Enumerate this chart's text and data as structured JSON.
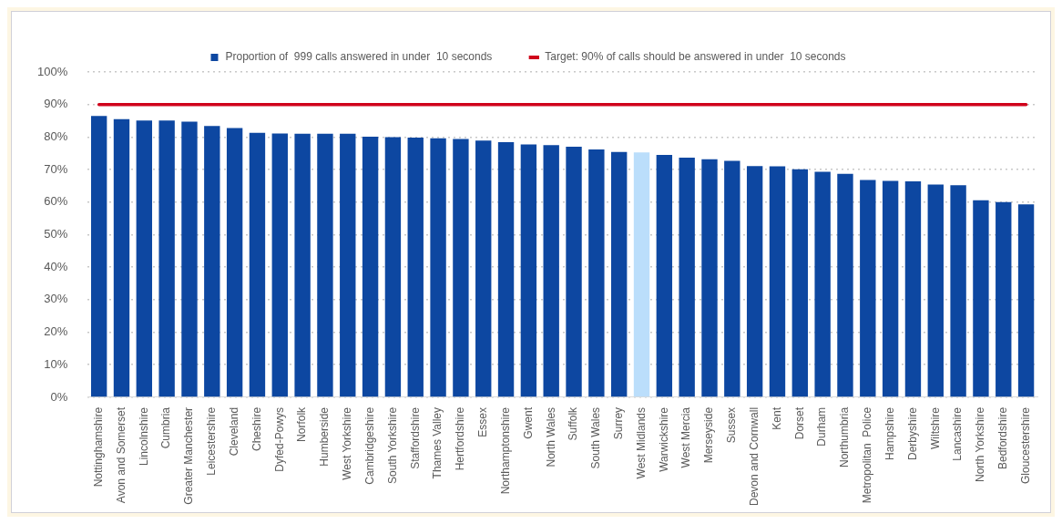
{
  "chart_data": {
    "type": "bar",
    "categories": [
      "Nottinghamshire",
      "Avon and Somerset",
      "Lincolnshire",
      "Cumbria",
      "Greater Manchester",
      "Leicestershire",
      "Cleveland",
      "Cheshire",
      "Dyfed-Powys",
      "Norfolk",
      "Humberside",
      "West Yorkshire",
      "Cambridgeshire",
      "South Yorkshire",
      "Staffordshire",
      "Thames Valley",
      "Hertfordshire",
      "Essex",
      "Northamptonshire",
      "Gwent",
      "North Wales",
      "Suffolk",
      "South Wales",
      "Surrey",
      "West Midlands",
      "Warwickshire",
      "West Mercia",
      "Merseyside",
      "Sussex",
      "Devon and Cornwall",
      "Kent",
      "Dorset",
      "Durham",
      "Northumbria",
      "Metropolitan  Police",
      "Hampshire",
      "Derbyshire",
      "Wiltshire",
      "Lancashire",
      "North Yorkshire",
      "Bedfordshire",
      "Gloucestershire"
    ],
    "series": [
      {
        "name": "Proportion of  999 calls answered in under  10 seconds",
        "color": "#0d47a1",
        "colors": [
          "#0d47a1",
          "#0d47a1",
          "#0d47a1",
          "#0d47a1",
          "#0d47a1",
          "#0d47a1",
          "#0d47a1",
          "#0d47a1",
          "#0d47a1",
          "#0d47a1",
          "#0d47a1",
          "#0d47a1",
          "#0d47a1",
          "#0d47a1",
          "#0d47a1",
          "#0d47a1",
          "#0d47a1",
          "#0d47a1",
          "#0d47a1",
          "#0d47a1",
          "#0d47a1",
          "#0d47a1",
          "#0d47a1",
          "#0d47a1",
          "#bbdefb",
          "#0d47a1",
          "#0d47a1",
          "#0d47a1",
          "#0d47a1",
          "#0d47a1",
          "#0d47a1",
          "#0d47a1",
          "#0d47a1",
          "#0d47a1",
          "#0d47a1",
          "#0d47a1",
          "#0d47a1",
          "#0d47a1",
          "#0d47a1",
          "#0d47a1",
          "#0d47a1",
          "#0d47a1"
        ],
        "values": [
          86.5,
          85.5,
          85.1,
          85.1,
          84.7,
          83.4,
          82.8,
          81.3,
          81.1,
          81,
          81,
          81,
          80.1,
          80,
          79.8,
          79.6,
          79.4,
          78.9,
          78.4,
          77.7,
          77.5,
          77,
          76.2,
          75.4,
          75.3,
          74.5,
          73.7,
          73.2,
          72.7,
          71.1,
          71,
          70.1,
          69.3,
          68.7,
          66.8,
          66.5,
          66.4,
          65.4,
          65.2,
          60.6,
          60,
          59.3
        ]
      },
      {
        "name": "Target: 90% of calls should be answered in under  10 seconds",
        "type": "line",
        "color": "#d0021b",
        "values": [
          90,
          90,
          90,
          90,
          90,
          90,
          90,
          90,
          90,
          90,
          90,
          90,
          90,
          90,
          90,
          90,
          90,
          90,
          90,
          90,
          90,
          90,
          90,
          90,
          90,
          90,
          90,
          90,
          90,
          90,
          90,
          90,
          90,
          90,
          90,
          90,
          90,
          90,
          90,
          90,
          90,
          90
        ]
      }
    ],
    "ylim": [
      0,
      100
    ],
    "yticks": [
      {
        "value": 0,
        "label": "0%"
      },
      {
        "value": 10,
        "label": "10%"
      },
      {
        "value": 20,
        "label": "20%"
      },
      {
        "value": 30,
        "label": "30%"
      },
      {
        "value": 40,
        "label": "40%"
      },
      {
        "value": 50,
        "label": "50%"
      },
      {
        "value": 60,
        "label": "60%"
      },
      {
        "value": 70,
        "label": "70%"
      },
      {
        "value": 80,
        "label": "80%"
      },
      {
        "value": 90,
        "label": "90%"
      },
      {
        "value": 100,
        "label": "100%"
      }
    ],
    "grid": "y",
    "legend": "top",
    "marker": "none"
  }
}
